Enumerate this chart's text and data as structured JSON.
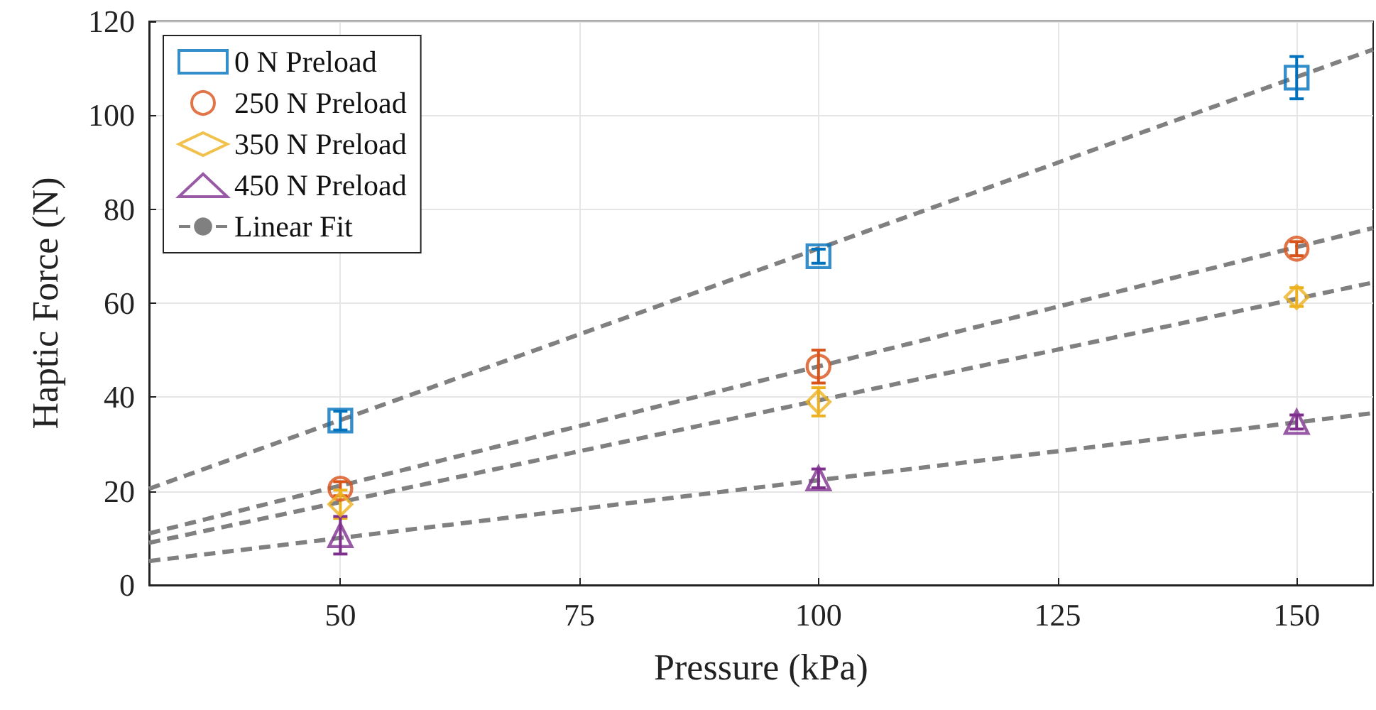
{
  "chart_data": {
    "type": "scatter",
    "xlabel": "Pressure (kPa)",
    "ylabel": "Haptic Force (N)",
    "xlim": [
      30,
      158
    ],
    "ylim": [
      0,
      120
    ],
    "xticks": [
      50,
      75,
      100,
      125,
      150
    ],
    "yticks": [
      0,
      20,
      40,
      60,
      80,
      100,
      120
    ],
    "grid": true,
    "legend": "top left",
    "series": [
      {
        "name": "0 N Preload",
        "color": "#0072bd",
        "marker": "square",
        "x": [
          50,
          100,
          150
        ],
        "values": [
          35,
          70,
          108
        ],
        "errors": [
          2,
          1.5,
          4.5
        ]
      },
      {
        "name": "250 N Preload",
        "color": "#d95319",
        "marker": "circle",
        "x": [
          50,
          100,
          150
        ],
        "values": [
          20.5,
          46.5,
          71.6
        ],
        "errors": [
          1.5,
          3.5,
          1.5
        ]
      },
      {
        "name": "350 N Preload",
        "color": "#edb120",
        "marker": "diamond",
        "x": [
          50,
          100,
          150
        ],
        "values": [
          17.2,
          39,
          61.3
        ],
        "errors": [
          3,
          3,
          2
        ]
      },
      {
        "name": "450 N Preload",
        "color": "#7e2f8e",
        "marker": "triangle",
        "x": [
          50,
          100,
          150
        ],
        "values": [
          10.6,
          22.7,
          34.7
        ],
        "errors": [
          4,
          2,
          1.5
        ]
      },
      {
        "type": "line",
        "name": "Linear Fit",
        "color": "#808080",
        "marker": "none",
        "line_style": "dashed",
        "x": [
          30,
          158
        ],
        "values": [
          20.5,
          114
        ]
      },
      {
        "type": "line",
        "color": "#808080",
        "marker": "none",
        "line_style": "dashed",
        "x": [
          30,
          158
        ],
        "values": [
          11,
          76
        ]
      },
      {
        "type": "line",
        "color": "#808080",
        "marker": "none",
        "line_style": "dashed",
        "x": [
          30,
          158
        ],
        "values": [
          9,
          64.4
        ]
      },
      {
        "type": "line",
        "color": "#808080",
        "marker": "none",
        "line_style": "dashed",
        "x": [
          30,
          158
        ],
        "values": [
          5.1,
          36.6
        ]
      }
    ]
  }
}
